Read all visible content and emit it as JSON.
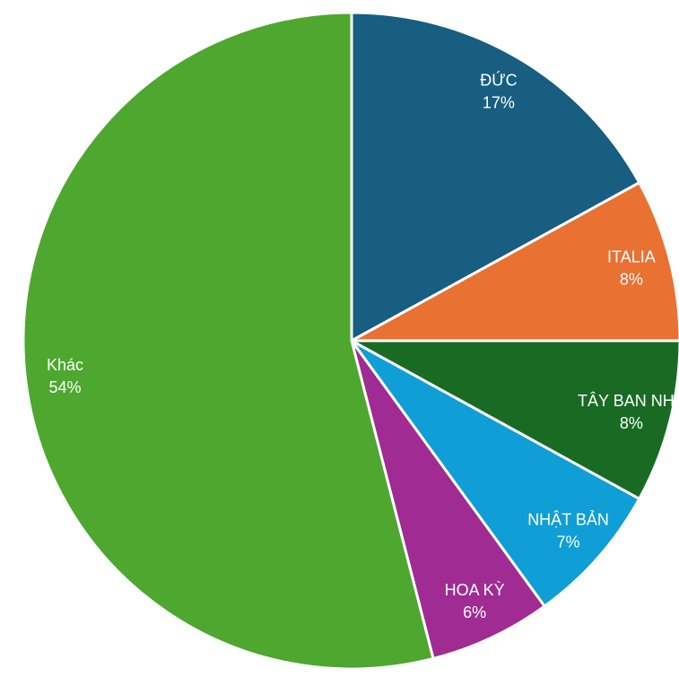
{
  "chart_data": {
    "type": "pie",
    "categories": [
      "ĐỨC",
      "ITALIA",
      "TÂY BAN NHA",
      "NHẬT BẢN",
      "HOA KỲ",
      "Khác"
    ],
    "values": [
      17,
      8,
      8,
      7,
      6,
      54
    ],
    "value_labels": [
      "17%",
      "8%",
      "8%",
      "7%",
      "6%",
      "54%"
    ],
    "colors": [
      "#175e81",
      "#e97132",
      "#196b24",
      "#0f9ed5",
      "#a02b93",
      "#4ea72e"
    ]
  }
}
